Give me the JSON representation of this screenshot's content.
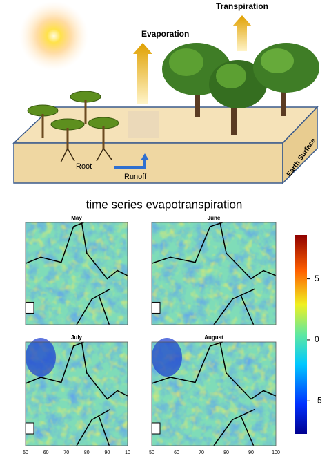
{
  "illustration": {
    "labels": {
      "transpiration": "Transpiration",
      "evaporation": "Evaporation",
      "earth_surface": "Earth Surface",
      "root": "Root",
      "runoff": "Runoff"
    }
  },
  "title": "time series evapotranspiration",
  "panels": [
    {
      "title": "May",
      "x_labels": []
    },
    {
      "title": "June",
      "x_labels": []
    },
    {
      "title": "July",
      "x_labels": [
        "50",
        "60",
        "70",
        "80",
        "90",
        "10"
      ]
    },
    {
      "title": "August",
      "x_labels": [
        "50",
        "60",
        "70",
        "80",
        "90",
        "100"
      ]
    }
  ],
  "colorbar": {
    "limits": [
      -7.7,
      8.6
    ],
    "ticks": [
      5,
      0,
      -5
    ]
  }
}
